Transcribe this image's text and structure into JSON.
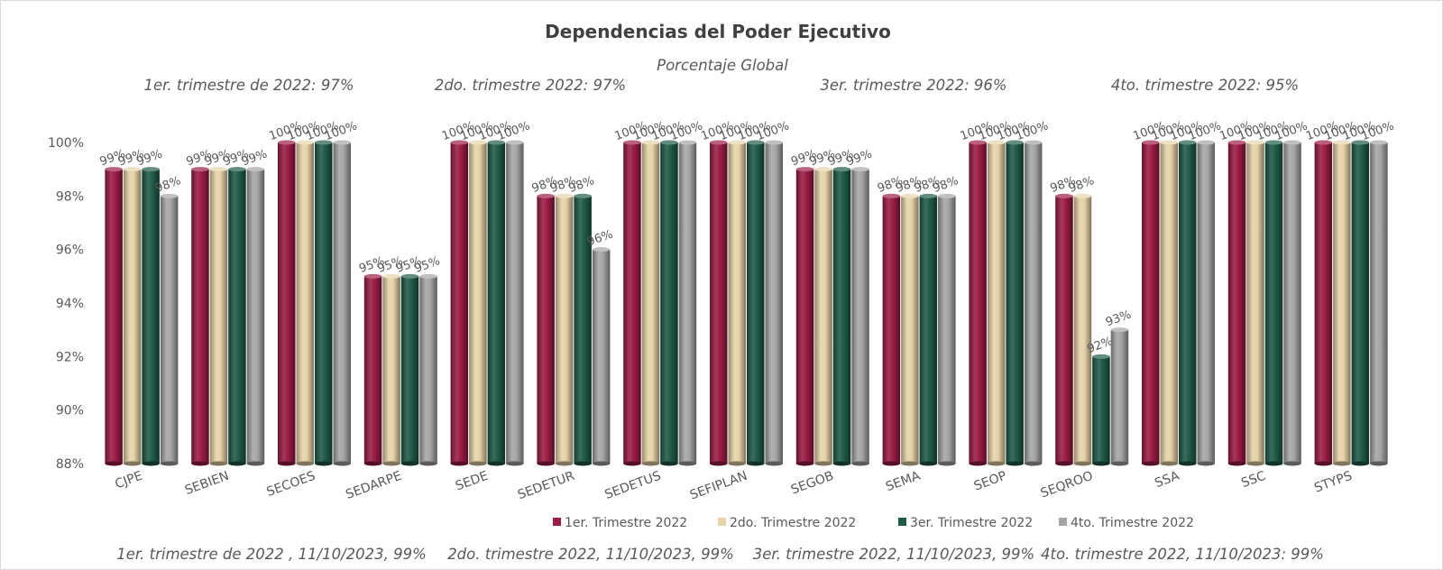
{
  "chart_data": {
    "type": "bar",
    "title": "Dependencias del Poder Ejecutivo",
    "subtitle": "Porcentaje Global",
    "quarter_summaries": [
      "1er. trimestre de 2022: 97%",
      "2do. trimestre 2022: 97%",
      "3er. trimestre 2022: 96%",
      "4to. trimestre 2022: 95%"
    ],
    "footer_notes": [
      "1er. trimestre de 2022 , 11/10/2023, 99%",
      "2do. trimestre 2022, 11/10/2023, 99%",
      "3er. trimestre 2022, 11/10/2023, 99%",
      "4to. trimestre 2022, 11/10/2023: 99%"
    ],
    "categories": [
      "CJPE",
      "SEBIEN",
      "SECOES",
      "SEDARPE",
      "SEDE",
      "SEDETUR",
      "SEDETUS",
      "SEFIPLAN",
      "SEGOB",
      "SEMA",
      "SEOP",
      "SEQROO",
      "SSA",
      "SSC",
      "STYPS"
    ],
    "series": [
      {
        "name": "1er. Trimestre 2022",
        "color": "#9b1c45",
        "values": [
          99,
          99,
          100,
          95,
          100,
          98,
          100,
          100,
          99,
          98,
          100,
          98,
          100,
          100,
          100
        ]
      },
      {
        "name": "2do. Trimestre 2022",
        "color": "#e6d3a8",
        "values": [
          99,
          99,
          100,
          95,
          100,
          98,
          100,
          100,
          99,
          98,
          100,
          98,
          100,
          100,
          100
        ]
      },
      {
        "name": "3er. Trimestre 2022",
        "color": "#1f5a48",
        "values": [
          99,
          99,
          100,
          95,
          100,
          98,
          100,
          100,
          99,
          98,
          100,
          92,
          100,
          100,
          100
        ]
      },
      {
        "name": "4to. Trimestre 2022",
        "color": "#a5a5a5",
        "values": [
          98,
          99,
          100,
          95,
          100,
          96,
          100,
          100,
          99,
          98,
          100,
          93,
          100,
          100,
          100
        ]
      }
    ],
    "ylim": [
      88,
      100
    ],
    "yticks": [
      88,
      90,
      92,
      94,
      96,
      98,
      100
    ],
    "ytick_format": "%",
    "grid": false,
    "legend_position": "bottom"
  }
}
